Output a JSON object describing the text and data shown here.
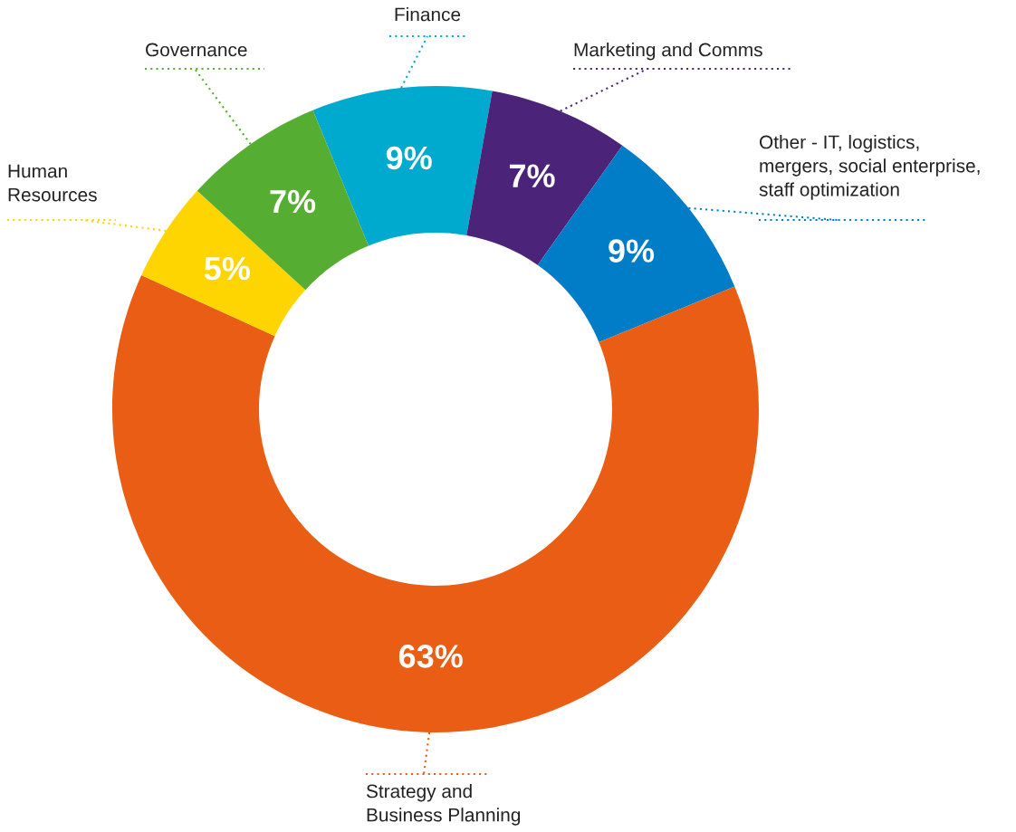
{
  "chart_data": {
    "type": "donut",
    "categories": [
      "Finance",
      "Marketing and Comms",
      "Other - IT, logistics,\nmergers, social enterprise,\nstaff optimization",
      "Strategy and\nBusiness Planning",
      "Human\nResources",
      "Governance"
    ],
    "values": [
      9,
      7,
      9,
      63,
      5,
      7
    ],
    "colors": [
      "#00a9ce",
      "#4b2378",
      "#007dc6",
      "#e95e14",
      "#ffd500",
      "#55ae31"
    ],
    "value_labels": [
      "9%",
      "7%",
      "9%",
      "63%",
      "5%",
      "7%"
    ]
  }
}
